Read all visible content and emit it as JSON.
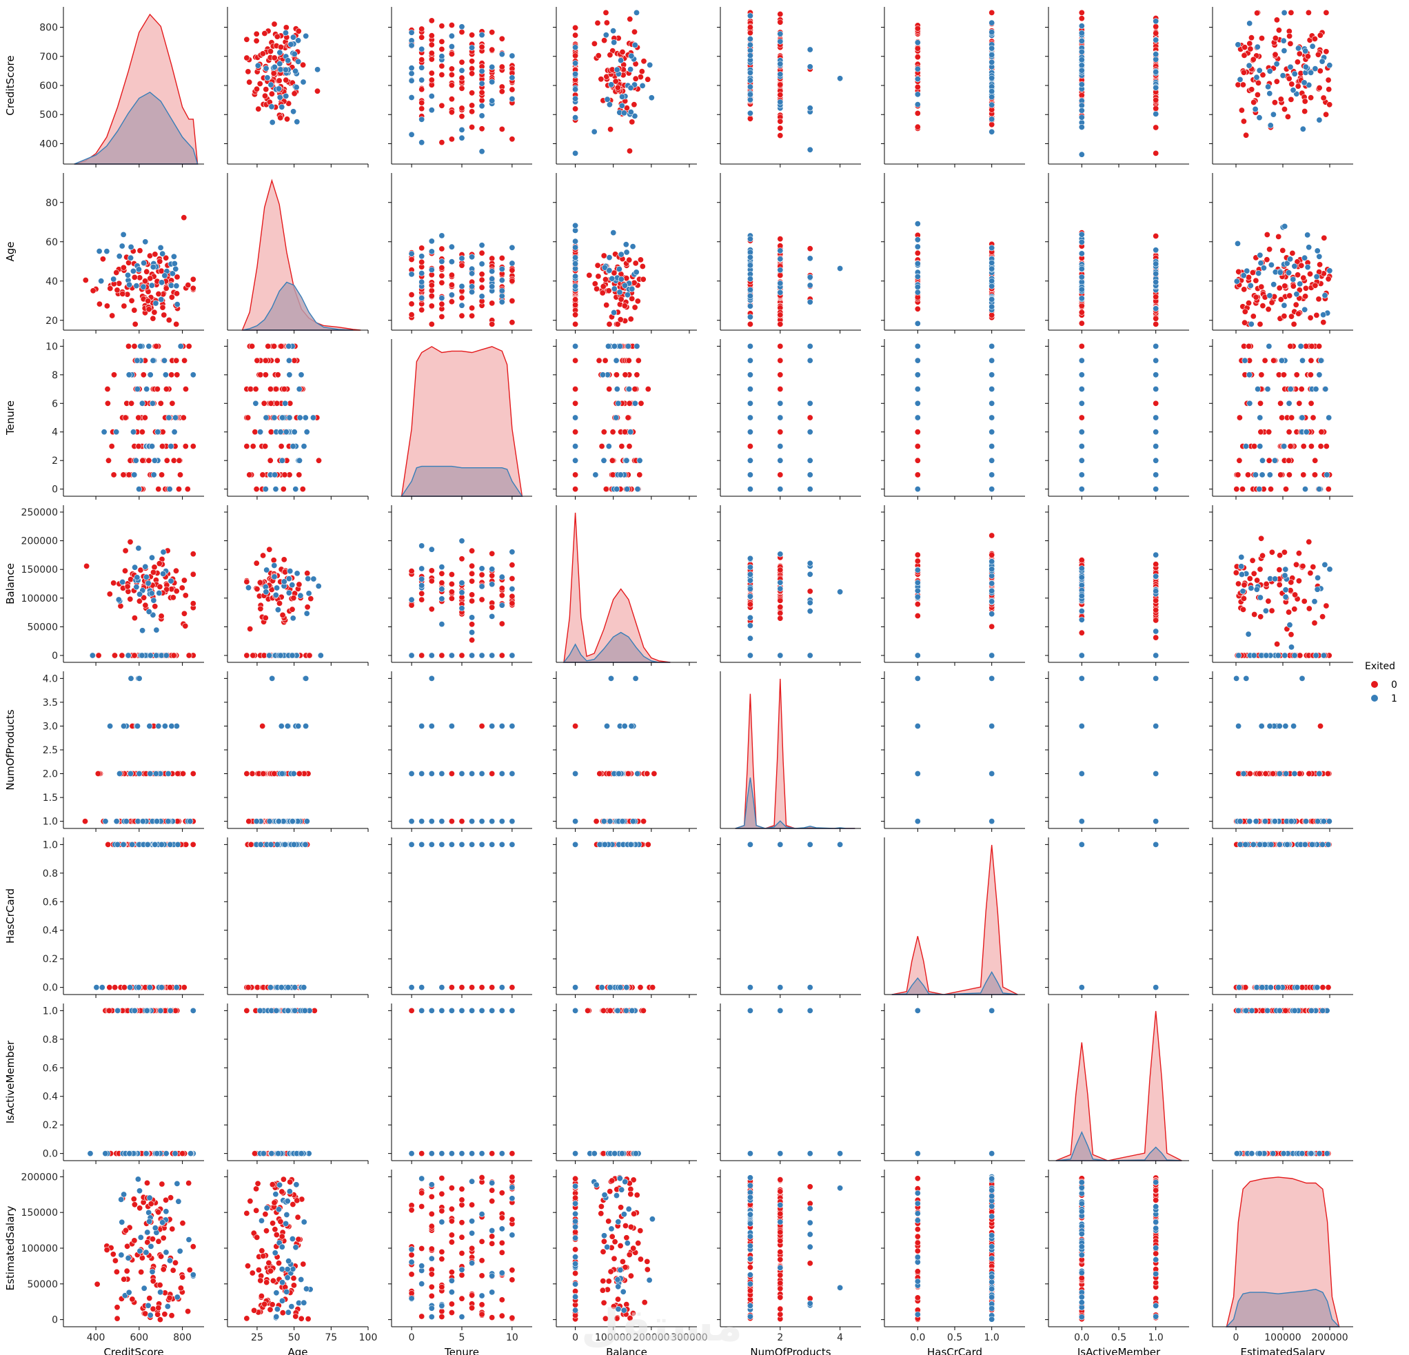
{
  "chart_data": {
    "type": "scatter",
    "kind": "pairplot",
    "variables": [
      "CreditScore",
      "Age",
      "Tenure",
      "Balance",
      "NumOfProducts",
      "HasCrCard",
      "IsActiveMember",
      "EstimatedSalary"
    ],
    "diag_kind": "kde",
    "hue": "Exited",
    "legend": {
      "title": "Exited",
      "position": "right",
      "entries": [
        {
          "label": "0",
          "color": "#e41a1c"
        },
        {
          "label": "1",
          "color": "#377eb8"
        }
      ]
    },
    "colors": {
      "class0": "#e41a1c",
      "class1": "#377eb8",
      "kde_fill0": "#f4b8b8",
      "kde_fill1": "#b8a0b0"
    },
    "axes": {
      "CreditScore": {
        "lim": [
          250,
          900
        ],
        "ticks": [
          400,
          600,
          800
        ],
        "ticklabels": [
          "400",
          "600",
          "800"
        ],
        "ylim": [
          330,
          870
        ],
        "yticks": [
          400,
          500,
          600,
          700,
          800
        ],
        "yticklabels": [
          "400",
          "500",
          "600",
          "700",
          "800"
        ],
        "kind": "continuous",
        "range": [
          350,
          850
        ],
        "center": 650,
        "spread": 95
      },
      "Age": {
        "lim": [
          5,
          100
        ],
        "ticks": [
          25,
          50,
          75,
          100
        ],
        "ticklabels": [
          "25",
          "50",
          "75",
          "100"
        ],
        "ylim": [
          15,
          95
        ],
        "yticks": [
          20,
          40,
          60,
          80
        ],
        "yticklabels": [
          "20",
          "40",
          "60",
          "80"
        ],
        "kind": "continuous",
        "range": [
          18,
          92
        ],
        "center": 38,
        "spread": 10
      },
      "Tenure": {
        "lim": [
          -2,
          12
        ],
        "ticks": [
          0,
          5,
          10
        ],
        "ticklabels": [
          "0",
          "5",
          "10"
        ],
        "ylim": [
          -0.5,
          10.5
        ],
        "yticks": [
          0,
          2,
          4,
          6,
          8,
          10
        ],
        "yticklabels": [
          "0",
          "2",
          "4",
          "6",
          "8",
          "10"
        ],
        "kind": "discrete",
        "values": [
          0,
          1,
          2,
          3,
          4,
          5,
          6,
          7,
          8,
          9,
          10
        ]
      },
      "Balance": {
        "lim": [
          -50000,
          320000
        ],
        "ticks": [
          0,
          100000,
          200000,
          300000
        ],
        "ticklabels": [
          "0",
          "100000",
          "200000",
          "300000"
        ],
        "ylim": [
          -12000,
          262000
        ],
        "yticks": [
          0,
          50000,
          100000,
          150000,
          200000,
          250000
        ],
        "yticklabels": [
          "0",
          "50000",
          "100000",
          "150000",
          "200000",
          "250000"
        ],
        "kind": "continuous",
        "range": [
          0,
          250000
        ],
        "center": 120000,
        "spread": 30000
      },
      "NumOfProducts": {
        "lim": [
          0,
          4.7
        ],
        "ticks": [
          2,
          4
        ],
        "ticklabels": [
          "2",
          "4"
        ],
        "ylim": [
          0.85,
          4.15
        ],
        "yticks": [
          1.0,
          1.5,
          2.0,
          2.5,
          3.0,
          3.5,
          4.0
        ],
        "yticklabels": [
          "1.0",
          "1.5",
          "2.0",
          "2.5",
          "3.0",
          "3.5",
          "4.0"
        ],
        "kind": "discrete",
        "values": [
          1,
          2,
          3,
          4
        ]
      },
      "HasCrCard": {
        "lim": [
          -0.45,
          1.45
        ],
        "ticks": [
          0.0,
          0.5,
          1.0
        ],
        "ticklabels": [
          "0.0",
          "0.5",
          "1.0"
        ],
        "ylim": [
          -0.05,
          1.05
        ],
        "yticks": [
          0.0,
          0.2,
          0.4,
          0.6,
          0.8,
          1.0
        ],
        "yticklabels": [
          "0.0",
          "0.2",
          "0.4",
          "0.6",
          "0.8",
          "1.0"
        ],
        "kind": "discrete",
        "values": [
          0,
          1
        ]
      },
      "IsActiveMember": {
        "lim": [
          -0.45,
          1.45
        ],
        "ticks": [
          0.0,
          0.5,
          1.0
        ],
        "ticklabels": [
          "0.0",
          "0.5",
          "1.0"
        ],
        "ylim": [
          -0.05,
          1.05
        ],
        "yticks": [
          0.0,
          0.2,
          0.4,
          0.6,
          0.8,
          1.0
        ],
        "yticklabels": [
          "0.0",
          "0.2",
          "0.4",
          "0.6",
          "0.8",
          "1.0"
        ],
        "kind": "discrete",
        "values": [
          0,
          1
        ]
      },
      "EstimatedSalary": {
        "lim": [
          -50000,
          250000
        ],
        "ticks": [
          0,
          100000,
          200000
        ],
        "ticklabels": [
          "0",
          "100000",
          "200000"
        ],
        "ylim": [
          -10000,
          210000
        ],
        "yticks": [
          0,
          50000,
          100000,
          150000,
          200000
        ],
        "yticklabels": [
          "0",
          "50000",
          "100000",
          "150000",
          "200000"
        ],
        "kind": "uniform",
        "range": [
          0,
          200000
        ]
      }
    },
    "diagonal_kde": {
      "CreditScore": {
        "class0": {
          "x": [
            300,
            350,
            400,
            450,
            500,
            550,
            600,
            650,
            700,
            750,
            800,
            830,
            850,
            870
          ],
          "y": [
            0.0,
            0.02,
            0.07,
            0.18,
            0.38,
            0.62,
            0.88,
            1.0,
            0.92,
            0.66,
            0.38,
            0.3,
            0.3,
            0.0
          ]
        },
        "class1": {
          "x": [
            300,
            350,
            400,
            450,
            500,
            550,
            600,
            650,
            700,
            750,
            800,
            850,
            870
          ],
          "y": [
            0.0,
            0.03,
            0.06,
            0.12,
            0.22,
            0.34,
            0.44,
            0.48,
            0.42,
            0.3,
            0.18,
            0.1,
            0.0
          ]
        }
      },
      "Age": {
        "class0": {
          "x": [
            15,
            20,
            25,
            30,
            35,
            40,
            45,
            50,
            55,
            60,
            65,
            70,
            80,
            90,
            95
          ],
          "y": [
            0.0,
            0.12,
            0.42,
            0.82,
            1.0,
            0.84,
            0.52,
            0.28,
            0.14,
            0.08,
            0.05,
            0.03,
            0.02,
            0.005,
            0.0
          ]
        },
        "class1": {
          "x": [
            15,
            20,
            25,
            30,
            35,
            40,
            45,
            50,
            55,
            60,
            65,
            70,
            80,
            90
          ],
          "y": [
            0.0,
            0.01,
            0.03,
            0.07,
            0.15,
            0.26,
            0.32,
            0.3,
            0.22,
            0.12,
            0.05,
            0.02,
            0.005,
            0.0
          ]
        }
      },
      "Tenure": {
        "class0": {
          "x": [
            -1,
            0,
            0.5,
            1,
            2,
            3,
            4,
            5,
            6,
            7,
            8,
            9,
            9.5,
            10,
            11
          ],
          "y": [
            0.0,
            0.45,
            0.9,
            0.96,
            1.0,
            0.96,
            0.97,
            0.97,
            0.96,
            0.98,
            1.0,
            0.97,
            0.88,
            0.45,
            0.0
          ]
        },
        "class1": {
          "x": [
            -1,
            0,
            0.5,
            1,
            2,
            3,
            4,
            5,
            6,
            7,
            8,
            9,
            9.5,
            10,
            11
          ],
          "y": [
            0.0,
            0.1,
            0.19,
            0.2,
            0.2,
            0.2,
            0.2,
            0.19,
            0.19,
            0.19,
            0.19,
            0.19,
            0.18,
            0.1,
            0.0
          ]
        }
      },
      "Balance": {
        "class0": {
          "x": [
            -30000,
            -15000,
            0,
            15000,
            30000,
            50000,
            75000,
            100000,
            120000,
            140000,
            160000,
            180000,
            200000,
            220000,
            250000
          ],
          "y": [
            0.0,
            0.3,
            1.0,
            0.3,
            0.04,
            0.06,
            0.22,
            0.42,
            0.49,
            0.42,
            0.26,
            0.1,
            0.03,
            0.01,
            0.0
          ]
        },
        "class1": {
          "x": [
            -30000,
            -15000,
            0,
            15000,
            30000,
            50000,
            75000,
            100000,
            120000,
            140000,
            160000,
            180000,
            200000,
            220000,
            250000
          ],
          "y": [
            0.0,
            0.05,
            0.12,
            0.05,
            0.01,
            0.02,
            0.09,
            0.17,
            0.2,
            0.17,
            0.1,
            0.04,
            0.01,
            0.0,
            0.0
          ]
        }
      },
      "NumOfProducts": {
        "class0": {
          "x": [
            0.5,
            0.8,
            0.9,
            1.0,
            1.1,
            1.2,
            1.5,
            1.8,
            1.9,
            2.0,
            2.1,
            2.2,
            2.5,
            2.8,
            3.0,
            3.2,
            4.0,
            4.5
          ],
          "y": [
            0.0,
            0.02,
            0.4,
            0.9,
            0.4,
            0.02,
            0.0,
            0.02,
            0.45,
            1.0,
            0.45,
            0.02,
            0.0,
            0.0,
            0.005,
            0.0,
            0.0,
            0.0
          ]
        },
        "class1": {
          "x": [
            0.5,
            0.8,
            0.9,
            1.0,
            1.1,
            1.2,
            1.5,
            1.8,
            1.9,
            2.0,
            2.1,
            2.2,
            2.5,
            2.8,
            3.0,
            3.2,
            3.8,
            4.0,
            4.2,
            4.5
          ],
          "y": [
            0.0,
            0.02,
            0.2,
            0.34,
            0.2,
            0.02,
            0.0,
            0.01,
            0.03,
            0.05,
            0.03,
            0.01,
            0.0,
            0.005,
            0.015,
            0.005,
            0.0,
            0.005,
            0.0,
            0.0
          ]
        }
      },
      "HasCrCard": {
        "class0": {
          "x": [
            -0.35,
            -0.15,
            -0.08,
            0.0,
            0.08,
            0.15,
            0.35,
            0.85,
            0.92,
            1.0,
            1.08,
            1.15,
            1.35
          ],
          "y": [
            0.0,
            0.02,
            0.22,
            0.39,
            0.22,
            0.02,
            0.0,
            0.05,
            0.55,
            1.0,
            0.55,
            0.05,
            0.0
          ]
        },
        "class1": {
          "x": [
            -0.35,
            -0.15,
            -0.08,
            0.0,
            0.08,
            0.15,
            0.35,
            0.85,
            0.92,
            1.0,
            1.08,
            1.15,
            1.35
          ],
          "y": [
            0.0,
            0.005,
            0.06,
            0.11,
            0.06,
            0.005,
            0.0,
            0.01,
            0.08,
            0.15,
            0.08,
            0.01,
            0.0
          ]
        }
      },
      "IsActiveMember": {
        "class0": {
          "x": [
            -0.35,
            -0.15,
            -0.08,
            0.0,
            0.08,
            0.15,
            0.35,
            0.85,
            0.92,
            1.0,
            1.08,
            1.15,
            1.35
          ],
          "y": [
            0.0,
            0.04,
            0.44,
            0.79,
            0.44,
            0.04,
            0.0,
            0.05,
            0.55,
            1.0,
            0.55,
            0.05,
            0.0
          ]
        },
        "class1": {
          "x": [
            -0.35,
            -0.15,
            -0.08,
            0.0,
            0.08,
            0.15,
            0.35,
            0.85,
            0.92,
            1.0,
            1.08,
            1.15,
            1.35
          ],
          "y": [
            0.0,
            0.01,
            0.1,
            0.19,
            0.1,
            0.01,
            0.0,
            0.005,
            0.05,
            0.09,
            0.05,
            0.005,
            0.0
          ]
        }
      },
      "EstimatedSalary": {
        "class0": {
          "x": [
            -20000,
            -5000,
            5000,
            15000,
            30000,
            60000,
            90000,
            120000,
            150000,
            170000,
            185000,
            195000,
            205000,
            220000
          ],
          "y": [
            0.0,
            0.2,
            0.7,
            0.92,
            0.97,
            0.99,
            1.0,
            0.99,
            0.96,
            0.96,
            0.92,
            0.7,
            0.2,
            0.0
          ]
        },
        "class1": {
          "x": [
            -20000,
            -5000,
            5000,
            15000,
            30000,
            60000,
            90000,
            120000,
            150000,
            170000,
            185000,
            195000,
            205000,
            220000
          ],
          "y": [
            0.0,
            0.05,
            0.17,
            0.22,
            0.23,
            0.23,
            0.22,
            0.23,
            0.24,
            0.25,
            0.23,
            0.17,
            0.05,
            0.0
          ]
        }
      }
    }
  },
  "watermark": "مستقل"
}
